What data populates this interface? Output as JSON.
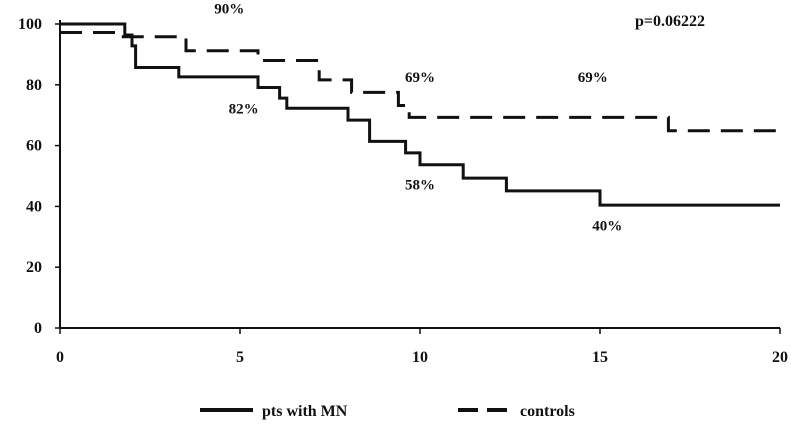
{
  "chart_data": {
    "type": "line",
    "title": "",
    "xlabel": "",
    "ylabel": "",
    "xlim": [
      0,
      20
    ],
    "ylim": [
      0,
      100
    ],
    "x_ticks": [
      0,
      5,
      10,
      15,
      20
    ],
    "y_ticks": [
      0,
      20,
      40,
      60,
      80,
      100
    ],
    "x_tick_labels": [
      "0",
      "5",
      "10",
      "15",
      "20"
    ],
    "y_tick_labels": [
      "0",
      "20",
      "40",
      "60",
      "80",
      "100"
    ],
    "grid": false,
    "legend_position": "bottom",
    "series": [
      {
        "name": "pts with MN",
        "style": "solid",
        "color": "#111111",
        "x": [
          0,
          1.6,
          1.8,
          2.0,
          2.1,
          3.3,
          5.5,
          6.1,
          6.3,
          8.0,
          8.6,
          9.6,
          10.0,
          11.2,
          12.4,
          15.0,
          20
        ],
        "y": [
          100,
          100,
          96.4,
          92.8,
          85.7,
          82.6,
          79.1,
          75.6,
          72.3,
          68.4,
          61.4,
          57.6,
          53.7,
          49.3,
          45.1,
          40.4,
          40.4
        ]
      },
      {
        "name": "controls",
        "style": "dashed",
        "color": "#111111",
        "x": [
          0,
          1.7,
          3.5,
          5.5,
          7.2,
          8.1,
          9.4,
          9.7,
          16.9,
          20
        ],
        "y": [
          97.2,
          95.8,
          91.2,
          88.0,
          81.6,
          77.5,
          73.2,
          69.3,
          64.9,
          64.9
        ]
      }
    ],
    "annotations": [
      {
        "text": "90%",
        "x": 4.7,
        "y": 103.5
      },
      {
        "text": "82%",
        "x": 5.1,
        "y": 70.5
      },
      {
        "text": "69%",
        "x": 10.0,
        "y": 81.0
      },
      {
        "text": "69%",
        "x": 14.8,
        "y": 81.0
      },
      {
        "text": "58%",
        "x": 10.0,
        "y": 45.5
      },
      {
        "text": "40%",
        "x": 15.2,
        "y": 32.0
      }
    ],
    "p_value_label": "p=0.06222"
  }
}
